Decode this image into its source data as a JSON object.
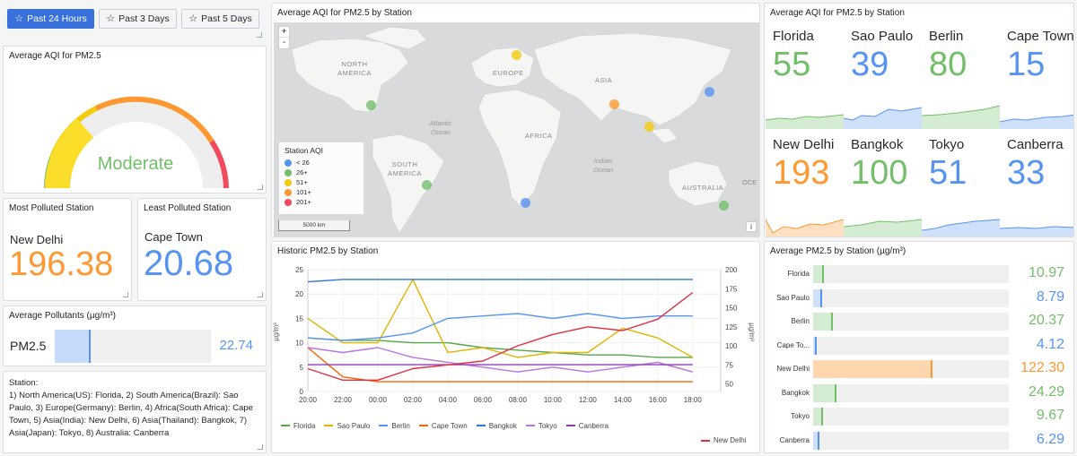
{
  "time_buttons": [
    {
      "label": "Past 24 Hours",
      "active": true
    },
    {
      "label": "Past 3 Days",
      "active": false
    },
    {
      "label": "Past 5 Days",
      "active": false
    }
  ],
  "gauge": {
    "title": "Average AQI for PM2.5",
    "label": "Moderate",
    "value_fraction": 0.22,
    "color": "#73bf69"
  },
  "most_polluted": {
    "title": "Most Polluted Station",
    "station": "New Delhi",
    "value": "196.38",
    "color": "#ff9830"
  },
  "least_polluted": {
    "title": "Least Polluted Station",
    "station": "Cape Town",
    "value": "20.68",
    "color": "#5794f2"
  },
  "avg_pollutants": {
    "title": "Average Pollutants (µg/m³)",
    "name": "PM2.5",
    "value": "22.74",
    "fraction": 0.23
  },
  "station_info": {
    "title": "Station:",
    "text": "1) North America(US): Florida, 2) South America(Brazil): Sao Paulo, 3) Europe(Germany): Berlin, 4) Africa(South Africa): Cape Town, 5) Asia(India): New Delhi, 6) Asia(Thailand): Bangkok, 7) Asia(Japan): Tokyo, 8) Australia: Canberra"
  },
  "map": {
    "title": "Average AQI for PM2.5 by Station",
    "zoom_in": "+",
    "zoom_out": "-",
    "labels": {
      "north_america": "NORTH AMERICA",
      "europe": "EUROPE",
      "asia": "ASIA",
      "atlantic": "Atlantic Ocean",
      "africa": "AFRICA",
      "south_america": "SOUTH AMERICA",
      "indian": "Indian Ocean",
      "australia": "AUSTRALIA",
      "oce": "OCE"
    },
    "legend_title": "Station AQI",
    "legend": [
      {
        "label": "< 26",
        "color": "#5794f2"
      },
      {
        "label": "26+",
        "color": "#73bf69"
      },
      {
        "label": "51+",
        "color": "#f2cc0c"
      },
      {
        "label": "101+",
        "color": "#ff9830"
      },
      {
        "label": "201+",
        "color": "#f2495c"
      }
    ],
    "scale": "5000 km",
    "info": "i"
  },
  "stats_grid": {
    "title": "Average AQI for PM2.5 by Station",
    "items": [
      {
        "name": "Florida",
        "value": "55",
        "color": "#73bf69",
        "fill": "#d4ecd1"
      },
      {
        "name": "Sao Paulo",
        "value": "39",
        "color": "#5794f2",
        "fill": "#cfe0fb"
      },
      {
        "name": "Berlin",
        "value": "80",
        "color": "#73bf69",
        "fill": "#d4ecd1"
      },
      {
        "name": "Cape Town",
        "value": "15",
        "color": "#5794f2",
        "fill": "#cfe0fb"
      },
      {
        "name": "New Delhi",
        "value": "193",
        "color": "#ff9830",
        "fill": "#ffe0c2"
      },
      {
        "name": "Bangkok",
        "value": "100",
        "color": "#73bf69",
        "fill": "#d4ecd1"
      },
      {
        "name": "Tokyo",
        "value": "51",
        "color": "#5794f2",
        "fill": "#cfe0fb"
      },
      {
        "name": "Canberra",
        "value": "33",
        "color": "#5794f2",
        "fill": "#cfe0fb"
      }
    ]
  },
  "historic": {
    "title": "Historic PM2.5 by Station",
    "ylabel_left": "µg/m³",
    "ylabel_right": "µg/m³",
    "legend_bottom": [
      {
        "name": "Florida",
        "color": "#56a64b"
      },
      {
        "name": "Sao Paulo",
        "color": "#e0b400"
      },
      {
        "name": "Berlin",
        "color": "#5794f2"
      },
      {
        "name": "Cape Town",
        "color": "#fa6400"
      },
      {
        "name": "Bangkok",
        "color": "#3274d9"
      },
      {
        "name": "Tokyo",
        "color": "#b877d9"
      },
      {
        "name": "Canberra",
        "color": "#8f3bb8"
      }
    ],
    "legend_right": {
      "name": "New Delhi",
      "color": "#e02f44"
    }
  },
  "chart_data": {
    "type": "line",
    "x": [
      "20:00",
      "22:00",
      "00:00",
      "02:00",
      "04:00",
      "06:00",
      "08:00",
      "10:00",
      "12:00",
      "14:00",
      "16:00",
      "18:00"
    ],
    "ylim": [
      0,
      25
    ],
    "yticks_left": [
      0,
      5,
      10,
      15,
      20,
      25
    ],
    "y2lim": [
      40,
      200
    ],
    "yticks_right": [
      50,
      75,
      100,
      125,
      150,
      175,
      200
    ],
    "series": [
      {
        "name": "Florida",
        "axis": "left",
        "color": "#56a64b",
        "values": [
          11,
          10.5,
          10.5,
          10,
          10,
          9,
          8.5,
          8,
          7.5,
          7.5,
          7,
          7
        ]
      },
      {
        "name": "Sao Paulo",
        "axis": "left",
        "color": "#e0b400",
        "values": [
          15,
          10,
          10,
          23,
          8,
          9,
          7,
          8,
          8,
          13,
          11,
          7
        ]
      },
      {
        "name": "Berlin",
        "axis": "left",
        "color": "#5794f2",
        "values": [
          11,
          10.5,
          11,
          12,
          15,
          15.5,
          16,
          15,
          16,
          15,
          15.5,
          15.5
        ]
      },
      {
        "name": "Cape Town",
        "axis": "left",
        "color": "#fa6400",
        "values": [
          9,
          3,
          2,
          2,
          2,
          2,
          2,
          2,
          2,
          2,
          2,
          2
        ]
      },
      {
        "name": "Bangkok",
        "axis": "left",
        "color": "#3274d9",
        "values": [
          22.5,
          23,
          23,
          23,
          23,
          23,
          23,
          23,
          23,
          23,
          23,
          23
        ]
      },
      {
        "name": "Tokyo",
        "axis": "left",
        "color": "#b877d9",
        "values": [
          9,
          8,
          9,
          7,
          6,
          5,
          4,
          5,
          4,
          5,
          6,
          4
        ]
      },
      {
        "name": "Canberra",
        "axis": "left",
        "color": "#8f3bb8",
        "values": [
          5.5,
          5.5,
          5.5,
          5.5,
          5.5,
          5.5,
          5.5,
          5.5,
          5.5,
          5.5,
          5.5,
          5.5
        ]
      },
      {
        "name": "New Delhi",
        "axis": "right",
        "color": "#e02f44",
        "values": [
          70,
          55,
          55,
          70,
          75,
          80,
          100,
          115,
          125,
          120,
          135,
          170
        ]
      }
    ]
  },
  "bar_gauge": {
    "title": "Average PM2.5 by Station (µg/m³)",
    "max": 200,
    "items": [
      {
        "name": "Florida",
        "value": "10.97",
        "num": 10.97,
        "color": "#73bf69",
        "fill": "#d4ecd1"
      },
      {
        "name": "Sao Paulo",
        "value": "8.79",
        "num": 8.79,
        "color": "#5794f2",
        "fill": "#cfe0fb"
      },
      {
        "name": "Berlin",
        "value": "20.37",
        "num": 20.37,
        "color": "#73bf69",
        "fill": "#d4ecd1"
      },
      {
        "name": "Cape To...",
        "value": "4.12",
        "num": 4.12,
        "color": "#5794f2",
        "fill": "#cfe0fb"
      },
      {
        "name": "New Delhi",
        "value": "122.30",
        "num": 122.3,
        "color": "#ff9830",
        "fill": "#ffd6ad"
      },
      {
        "name": "Bangkok",
        "value": "24.29",
        "num": 24.29,
        "color": "#73bf69",
        "fill": "#d4ecd1"
      },
      {
        "name": "Tokyo",
        "value": "9.67",
        "num": 9.67,
        "color": "#73bf69",
        "fill": "#d4ecd1"
      },
      {
        "name": "Canberra",
        "value": "6.29",
        "num": 6.29,
        "color": "#5794f2",
        "fill": "#cfe0fb"
      }
    ]
  }
}
